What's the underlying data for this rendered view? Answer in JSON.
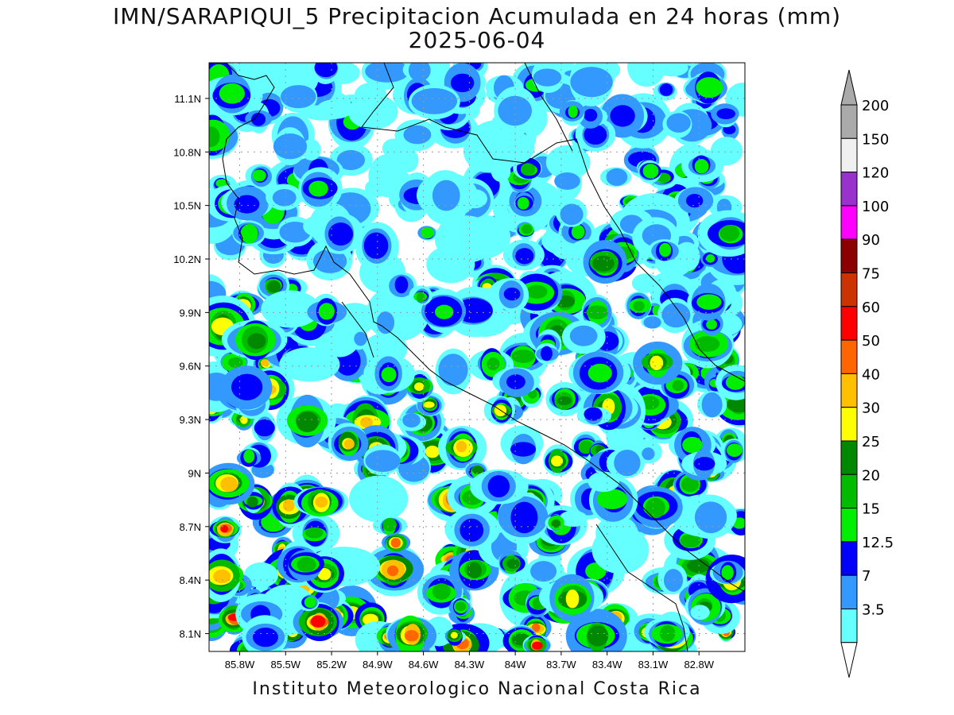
{
  "header": {
    "title": "IMN/SARAPIQUI_5 Precipitacion Acumulada en 24 horas (mm)",
    "date": "2025-06-04"
  },
  "map": {
    "region": "Costa Rica",
    "lon_labels": [
      "85.8W",
      "85.5W",
      "85.2W",
      "84.9W",
      "84.6W",
      "84.3W",
      "84W",
      "83.7W",
      "83.4W",
      "83.1W",
      "82.8W"
    ],
    "lat_labels": [
      "11.1N",
      "10.8N",
      "10.5N",
      "10.2N",
      "9.9N",
      "9.6N",
      "9.3N",
      "9N",
      "8.7N",
      "8.4N",
      "8.1N"
    ],
    "lon_range": [
      -86.0,
      -82.5
    ],
    "lat_range": [
      8.0,
      11.3
    ]
  },
  "colorbar": {
    "units": "mm",
    "levels": [
      {
        "label": "200",
        "color": "#aaaaaa"
      },
      {
        "label": "150",
        "color": "#f0f0f0"
      },
      {
        "label": "120",
        "color": "#9932cc"
      },
      {
        "label": "100",
        "color": "#ff00ff"
      },
      {
        "label": "90",
        "color": "#8b0000"
      },
      {
        "label": "75",
        "color": "#cc3300"
      },
      {
        "label": "60",
        "color": "#ff0000"
      },
      {
        "label": "50",
        "color": "#ff6600"
      },
      {
        "label": "40",
        "color": "#ffc000"
      },
      {
        "label": "30",
        "color": "#ffff00"
      },
      {
        "label": "25",
        "color": "#008800"
      },
      {
        "label": "20",
        "color": "#00bb00"
      },
      {
        "label": "15",
        "color": "#00ee00"
      },
      {
        "label": "12.5",
        "color": "#0000ff"
      },
      {
        "label": "7",
        "color": "#3399ff"
      },
      {
        "label": "3.5",
        "color": "#66ffff"
      }
    ],
    "overflow_color": "#aaaaaa",
    "underflow_color": "#ffffff"
  },
  "footer": {
    "credit": "Instituto Meteorologico Nacional Costa Rica"
  }
}
